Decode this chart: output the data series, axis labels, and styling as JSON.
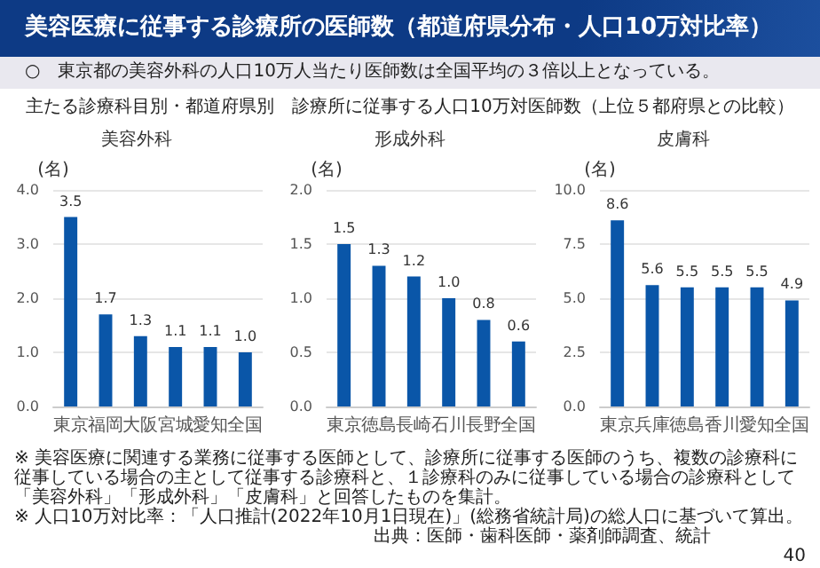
{
  "chart_data": [
    {
      "type": "other",
      "title": "美容医療に従事する診療所の医師数（都道府県分布・人口10万対比率）",
      "subtitle": "○　東京都の美容外科の人口10万人当たり医師数は全国平均の３倍以上となっている。",
      "annotations": [
        "主たる診療科目別・都道府県別　診療所に従事する人口10万対医師数（上位５都府県との比較）"
      ]
    },
    {
      "type": "bar",
      "title": "美容外科",
      "ylabel": "(名)",
      "categories": [
        "東京",
        "福岡",
        "大阪",
        "宮城",
        "愛知",
        "全国"
      ],
      "values": [
        3.5,
        1.7,
        1.3,
        1.1,
        1.1,
        1.0
      ],
      "value_labels": [
        "3.5",
        "1.7",
        "1.3",
        "1.1",
        "1.1",
        "1.0"
      ],
      "color": "#0a56a8",
      "ylim": [
        0,
        4
      ],
      "yticks": [
        {
          "value": 0,
          "label": "0.0"
        },
        {
          "value": 1,
          "label": "1.0"
        },
        {
          "value": 2,
          "label": "2.0"
        },
        {
          "value": 3,
          "label": "3.0"
        },
        {
          "value": 4,
          "label": "4.0"
        }
      ],
      "grid": "y"
    },
    {
      "type": "bar",
      "title": "形成外科",
      "ylabel": "(名)",
      "categories": [
        "東京",
        "徳島",
        "長崎",
        "石川",
        "長野",
        "全国"
      ],
      "values": [
        1.5,
        1.3,
        1.2,
        1.0,
        0.8,
        0.6
      ],
      "value_labels": [
        "1.5",
        "1.3",
        "1.2",
        "1.0",
        "0.8",
        "0.6"
      ],
      "color": "#0a56a8",
      "ylim": [
        0,
        2
      ],
      "yticks": [
        {
          "value": 0,
          "label": "0.0"
        },
        {
          "value": 0.5,
          "label": "0.5"
        },
        {
          "value": 1,
          "label": "1.0"
        },
        {
          "value": 1.5,
          "label": "1.5"
        },
        {
          "value": 2,
          "label": "2.0"
        }
      ],
      "grid": "y"
    },
    {
      "type": "bar",
      "title": "皮膚科",
      "ylabel": "(名)",
      "categories": [
        "東京",
        "兵庫",
        "徳島",
        "香川",
        "愛知",
        "全国"
      ],
      "values": [
        8.6,
        5.6,
        5.5,
        5.5,
        5.5,
        4.9
      ],
      "value_labels": [
        "8.6",
        "5.6",
        "5.5",
        "5.5",
        "5.5",
        "4.9"
      ],
      "color": "#0a56a8",
      "ylim": [
        0,
        10
      ],
      "yticks": [
        {
          "value": 0,
          "label": "0.0"
        },
        {
          "value": 2.5,
          "label": "2.5"
        },
        {
          "value": 5,
          "label": "5.0"
        },
        {
          "value": 7.5,
          "label": "7.5"
        },
        {
          "value": 10,
          "label": "10.0"
        }
      ],
      "grid": "y"
    },
    {
      "type": "other",
      "annotations": [
        "※ 美容医療に関連する業務に従事する医師として、診療所に従事する医師のうち、複数の診療科に従事している場合の主として従事する診療科と、１診療科のみに従事している場合の診療科として「美容外科」「形成外科」「皮膚科」と回答したものを集計。",
        "※ 人口10万対比率：「人口推計(2022年10月1日現在)」(総務省統計局)の総人口に基づいて算出。",
        "出典：医師・歯科医師・薬剤師調査、統計",
        "40"
      ]
    }
  ]
}
